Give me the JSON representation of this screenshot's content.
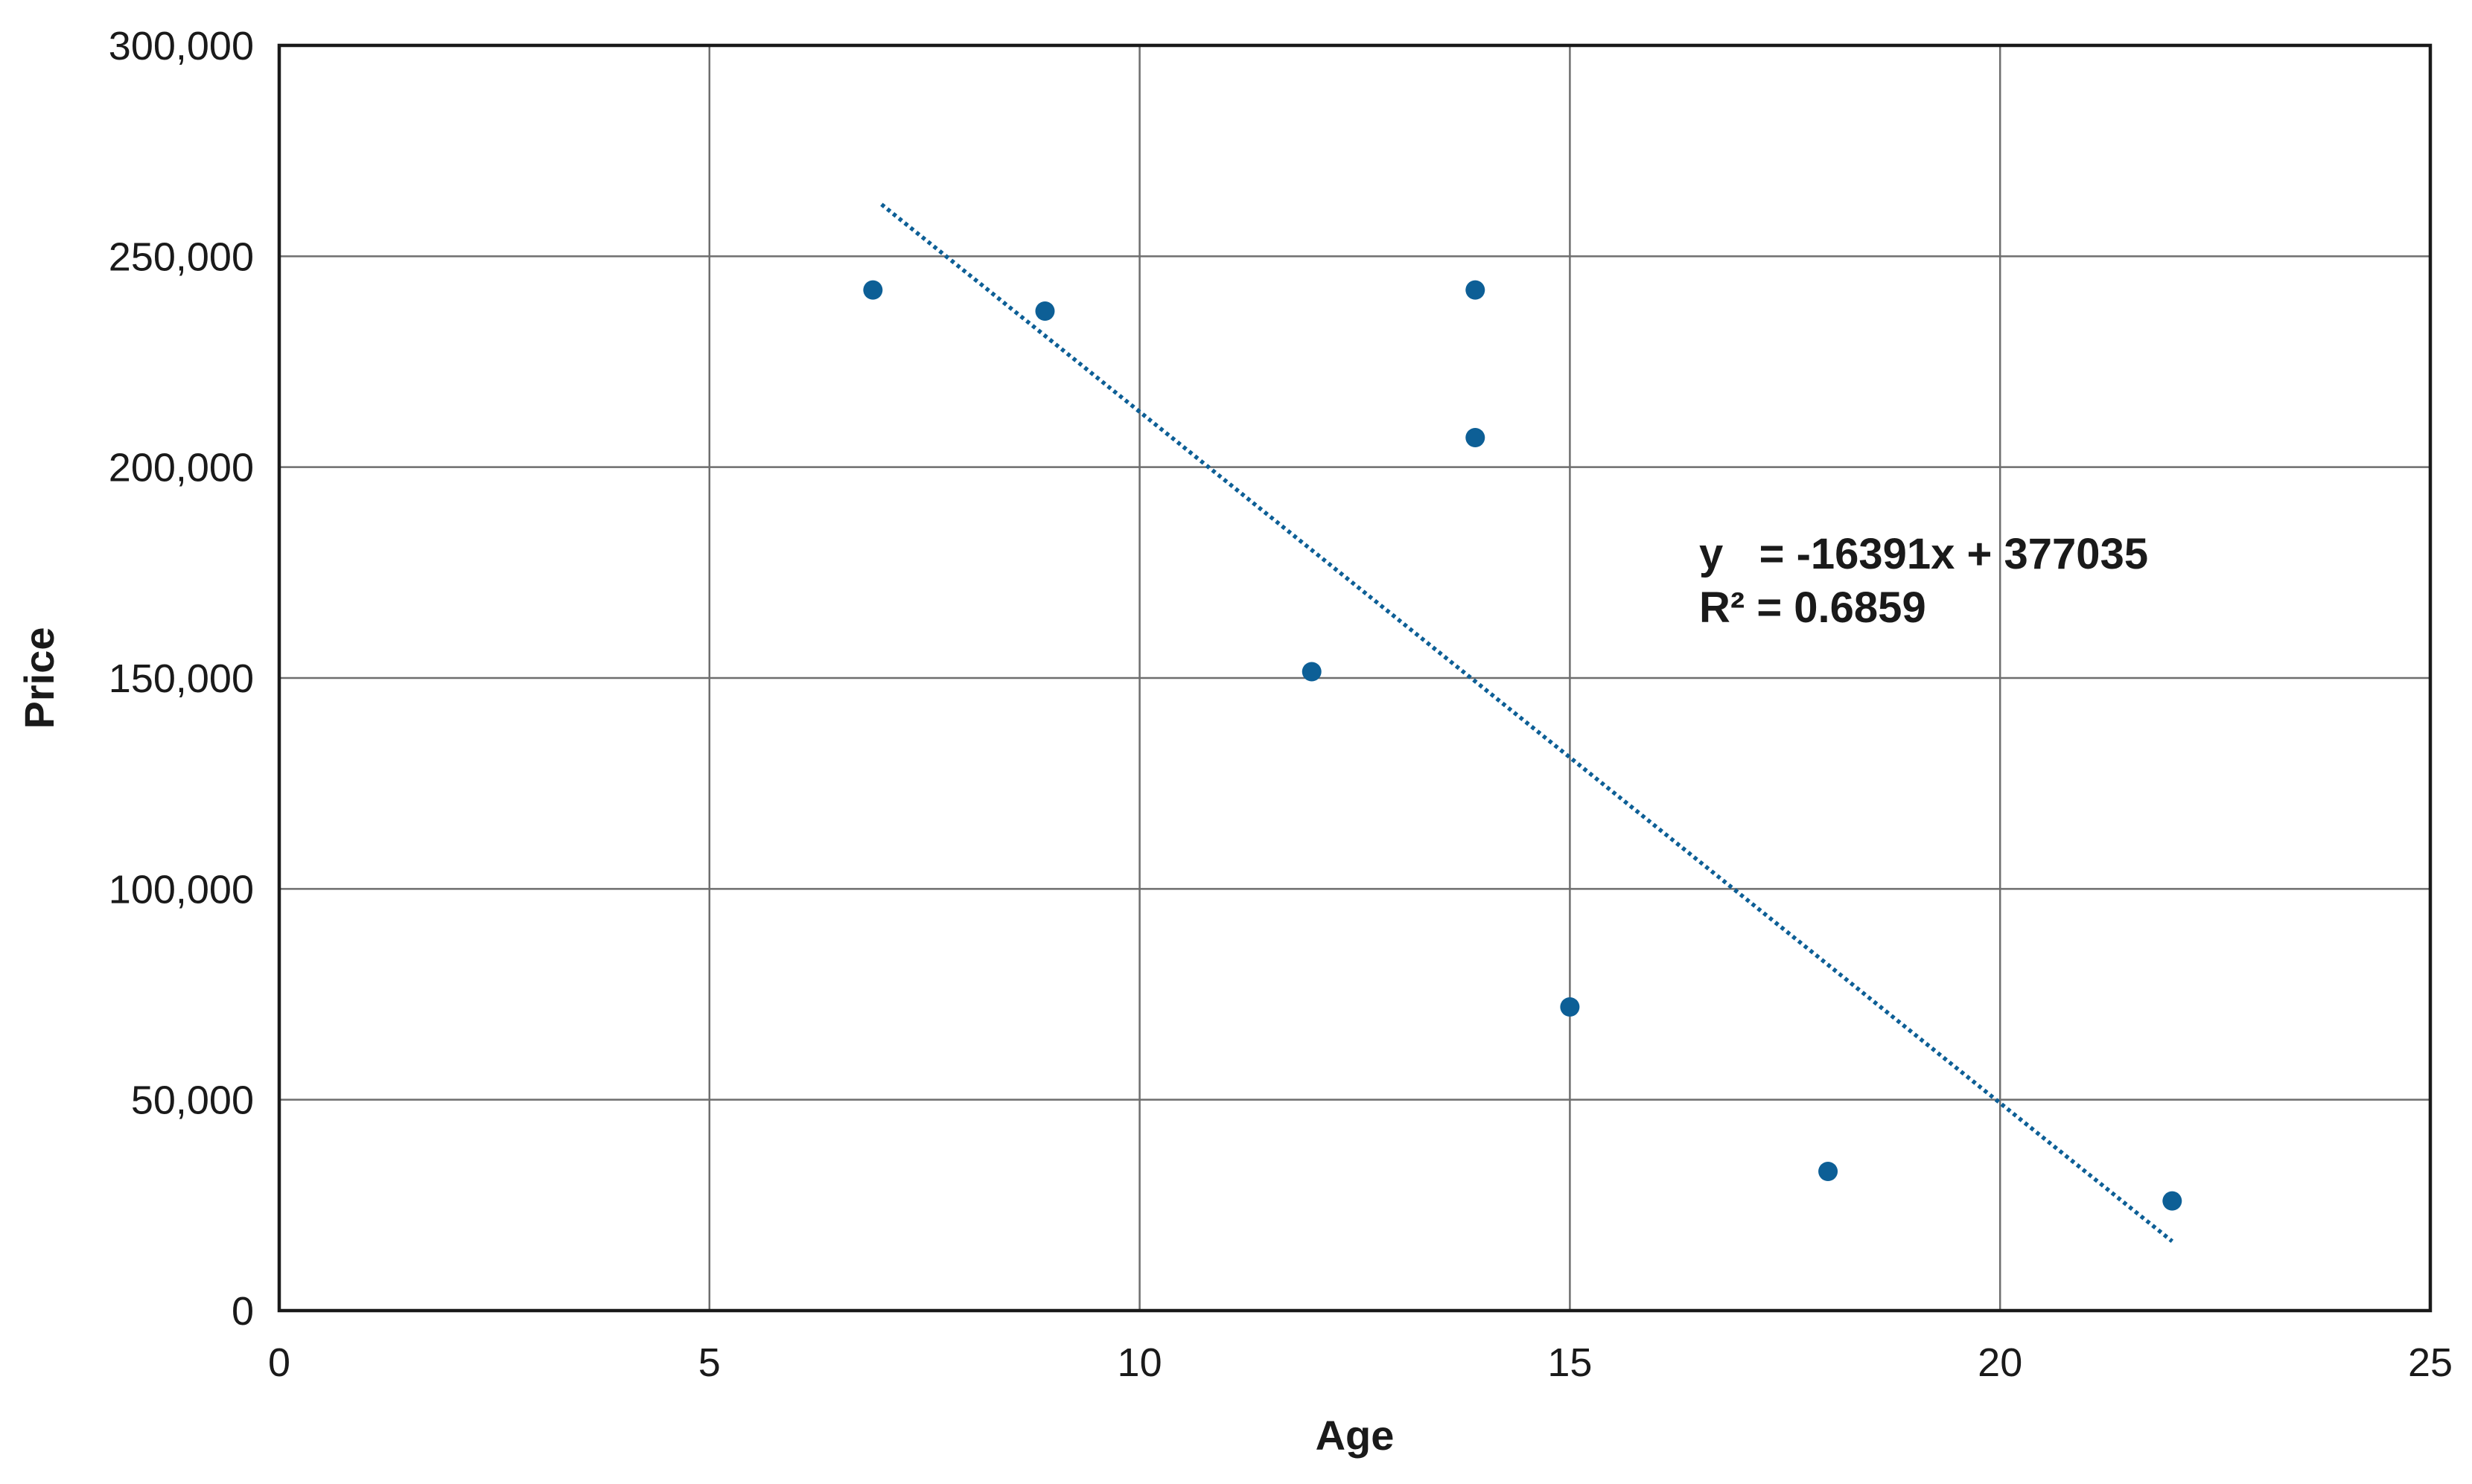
{
  "chart_data": {
    "type": "scatter",
    "xlabel": "Age",
    "ylabel": "Price",
    "xlim": [
      0,
      25
    ],
    "ylim": [
      0,
      300000
    ],
    "x_ticks": [
      0,
      5,
      10,
      15,
      20,
      25
    ],
    "y_ticks": [
      0,
      50000,
      100000,
      150000,
      200000,
      250000,
      300000
    ],
    "x_tick_labels": [
      "0",
      "5",
      "10",
      "15",
      "20",
      "25"
    ],
    "y_tick_labels": [
      "0",
      "50,000",
      "100,000",
      "150,000",
      "200,000",
      "250,000",
      "300,000"
    ],
    "grid": true,
    "legend": "none",
    "colors": {
      "point": "#0d5f96",
      "trendline": "#0d5f96",
      "grid": "#6e6e6e",
      "frame": "#1a1a1a"
    },
    "series": [
      {
        "points": [
          {
            "x": 6.9,
            "y": 242000
          },
          {
            "x": 8.9,
            "y": 237000
          },
          {
            "x": 12.0,
            "y": 151500
          },
          {
            "x": 13.9,
            "y": 242000
          },
          {
            "x": 13.9,
            "y": 207000
          },
          {
            "x": 15.0,
            "y": 72000
          },
          {
            "x": 18.0,
            "y": 33000
          },
          {
            "x": 22.0,
            "y": 26000
          }
        ]
      }
    ],
    "trendline": {
      "style": "dotted",
      "slope": -16391,
      "intercept": 377035,
      "x_range": [
        7,
        22
      ]
    },
    "annotations": {
      "equation": "y   = -16391x + 377035",
      "r_squared": "R² = 0.6859"
    }
  }
}
